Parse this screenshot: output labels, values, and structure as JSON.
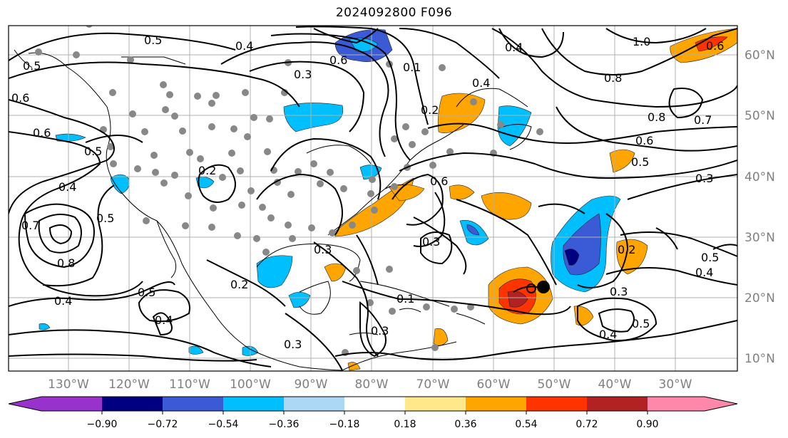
{
  "title": "2024092800 F096",
  "map": {
    "lat_ticks": [
      "60°N",
      "50°N",
      "40°N",
      "30°N",
      "20°N",
      "10°N"
    ],
    "lon_ticks": [
      "130°W",
      "120°W",
      "110°W",
      "100°W",
      "90°W",
      "80°W",
      "70°W",
      "60°W",
      "50°W",
      "40°W",
      "30°W"
    ],
    "contour_labels": [
      "0.5",
      "0.4",
      "0.6",
      "0.3",
      "0.2",
      "0.1",
      "0.4",
      "1.0",
      "0.8",
      "0.8",
      "0.7",
      "0.6",
      "0.5",
      "0.3",
      "0.6",
      "0.5",
      "0.4",
      "0.8",
      "0.7",
      "0.4",
      "0.5",
      "0.4",
      "0.3",
      "0.3",
      "0.2",
      "0.3",
      "0.3",
      "0.1",
      "0.6",
      "0.4",
      "0.5",
      "0.4",
      "0.3",
      "0.5",
      "0.2",
      "0.4",
      "0.6",
      "0.6",
      "0.5",
      "0.5",
      "0.2"
    ]
  },
  "colorbar": {
    "ticks": [
      "−0.90",
      "−0.72",
      "−0.54",
      "−0.36",
      "−0.18",
      "0.18",
      "0.36",
      "0.54",
      "0.72",
      "0.90"
    ],
    "colors": [
      "#9932cc",
      "#000080",
      "#3b5bd6",
      "#00bfff",
      "#add8f5",
      "#ffffff",
      "#ffe88a",
      "#ffa500",
      "#ff3300",
      "#b22222",
      "#ff88aa"
    ]
  }
}
